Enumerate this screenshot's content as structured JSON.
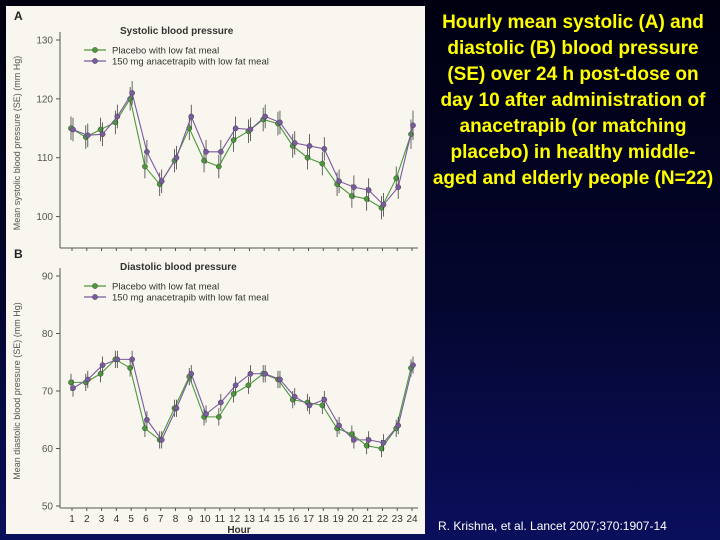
{
  "title": "Hourly mean systolic (A) and diastolic (B) blood pressure (SE) over 24 h post-dose on day 10 after administration of anacetrapib (or matching placebo) in healthy middle-aged and elderly people (N=22)",
  "citation": "R. Krishna, et al. Lancet 2007;370:1907-14",
  "colors": {
    "placebo": "#4a9a3a",
    "anacetrapib": "#7a5aa0",
    "error_bar": "#404040",
    "axis": "#555555"
  },
  "chart_data": [
    {
      "type": "line",
      "panel_label": "A",
      "title": "Systolic blood pressure",
      "xlabel": "Hour",
      "ylabel": "Mean systolic blood pressure (SE) (mm Hg)",
      "ylim": [
        95,
        130
      ],
      "yticks": [
        100,
        110,
        120,
        130
      ],
      "x": [
        1,
        2,
        3,
        4,
        5,
        6,
        7,
        8,
        9,
        10,
        11,
        12,
        13,
        14,
        15,
        16,
        17,
        18,
        19,
        20,
        21,
        22,
        23,
        24
      ],
      "show_x_tick_labels": false,
      "legend_position": "top-left",
      "series": [
        {
          "name": "Placebo with low fat meal",
          "key": "placebo",
          "values": [
            115.0,
            113.5,
            114.8,
            116.0,
            120.0,
            108.5,
            105.5,
            109.5,
            115.0,
            109.5,
            108.5,
            113.0,
            114.5,
            116.5,
            115.8,
            112.0,
            110.0,
            109.0,
            105.5,
            103.5,
            103.0,
            101.5,
            106.5,
            114.0
          ],
          "errors": [
            2.0,
            2.0,
            2.0,
            2.0,
            2.0,
            2.0,
            2.0,
            2.0,
            2.0,
            2.0,
            2.0,
            2.0,
            2.0,
            2.0,
            2.0,
            2.0,
            2.0,
            2.0,
            2.0,
            2.0,
            2.0,
            2.0,
            2.0,
            2.5
          ]
        },
        {
          "name": "150 mg anacetrapib with low fat meal",
          "key": "anacetrapib",
          "values": [
            114.8,
            113.8,
            114.0,
            117.0,
            121.0,
            111.0,
            106.0,
            110.0,
            117.0,
            111.0,
            111.0,
            115.0,
            114.8,
            117.0,
            116.0,
            112.5,
            112.0,
            111.5,
            106.0,
            105.0,
            104.5,
            102.0,
            105.0,
            115.5
          ],
          "errors": [
            2.0,
            2.0,
            2.0,
            2.0,
            2.0,
            2.0,
            2.0,
            2.0,
            2.0,
            2.0,
            2.0,
            2.0,
            2.0,
            2.0,
            2.0,
            2.0,
            2.0,
            2.0,
            2.0,
            2.0,
            2.0,
            2.0,
            2.0,
            2.5
          ]
        }
      ]
    },
    {
      "type": "line",
      "panel_label": "B",
      "title": "Diastolic blood pressure",
      "xlabel": "Hour",
      "ylabel": "Mean diastolic blood pressure (SE) (mm Hg)",
      "ylim": [
        50,
        90
      ],
      "yticks": [
        50,
        60,
        70,
        80,
        90
      ],
      "x": [
        1,
        2,
        3,
        4,
        5,
        6,
        7,
        8,
        9,
        10,
        11,
        12,
        13,
        14,
        15,
        16,
        17,
        18,
        19,
        20,
        21,
        22,
        23,
        24
      ],
      "x_tick_labels": [
        "1",
        "2",
        "3",
        "4",
        "5",
        "6",
        "7",
        "8",
        "9",
        "10",
        "11",
        "12",
        "13",
        "14",
        "15",
        "16",
        "17",
        "18",
        "19",
        "20",
        "21",
        "22",
        "23",
        "24"
      ],
      "show_x_tick_labels": true,
      "legend_position": "top-left",
      "series": [
        {
          "name": "Placebo with low fat meal",
          "key": "placebo",
          "values": [
            71.5,
            71.5,
            73.0,
            75.5,
            74.0,
            63.5,
            61.5,
            67.0,
            72.5,
            65.5,
            65.5,
            69.5,
            71.0,
            73.0,
            72.0,
            68.5,
            68.0,
            67.5,
            63.5,
            62.5,
            60.5,
            60.0,
            63.5,
            74.0
          ],
          "errors": [
            1.5,
            1.5,
            1.5,
            1.5,
            1.5,
            1.5,
            1.5,
            1.5,
            1.5,
            1.5,
            1.5,
            1.5,
            1.5,
            1.5,
            1.5,
            1.5,
            1.5,
            1.5,
            1.5,
            1.5,
            1.5,
            1.5,
            1.5,
            1.5
          ]
        },
        {
          "name": "150 mg anacetrapib with low fat meal",
          "key": "anacetrapib",
          "values": [
            70.5,
            72.0,
            74.5,
            75.5,
            75.5,
            65.0,
            61.5,
            67.0,
            73.0,
            66.0,
            68.0,
            71.0,
            73.0,
            73.0,
            72.0,
            69.0,
            67.5,
            68.5,
            64.0,
            61.5,
            61.5,
            61.0,
            64.0,
            74.5
          ],
          "errors": [
            1.5,
            1.5,
            1.5,
            1.5,
            1.5,
            1.5,
            1.5,
            1.5,
            1.5,
            1.5,
            1.5,
            1.5,
            1.5,
            1.5,
            1.5,
            1.5,
            1.5,
            1.5,
            1.5,
            1.5,
            1.5,
            1.5,
            1.5,
            1.5
          ]
        }
      ]
    }
  ]
}
